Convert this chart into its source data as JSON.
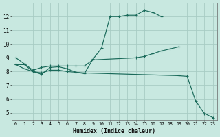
{
  "background_color": "#c8e8e0",
  "grid_color": "#a8ccc4",
  "line_color": "#1a6a5a",
  "xlabel": "Humidex (Indice chaleur)",
  "xlim": [
    -0.5,
    23.5
  ],
  "ylim": [
    4.5,
    13.0
  ],
  "xtick_vals": [
    0,
    1,
    2,
    3,
    4,
    5,
    6,
    7,
    8,
    9,
    10,
    11,
    12,
    13,
    14,
    15,
    16,
    17,
    18,
    19,
    20,
    21,
    22,
    23
  ],
  "ytick_vals": [
    5,
    6,
    7,
    8,
    9,
    10,
    11,
    12
  ],
  "line1_x": [
    0,
    1,
    2,
    3,
    4,
    5,
    6,
    7,
    8,
    9,
    10,
    11,
    12,
    13,
    14,
    15,
    16,
    17
  ],
  "line1_y": [
    8.5,
    8.5,
    8.0,
    7.8,
    8.3,
    8.35,
    8.2,
    7.95,
    7.85,
    8.9,
    9.7,
    12.0,
    12.0,
    12.1,
    12.1,
    12.45,
    12.3,
    12.0
  ],
  "line2_x": [
    0,
    1,
    2,
    3,
    4,
    5,
    6,
    7,
    8,
    9,
    14,
    15,
    16,
    17,
    18,
    19
  ],
  "line2_y": [
    9.0,
    8.55,
    8.1,
    8.3,
    8.4,
    8.4,
    8.4,
    8.4,
    8.4,
    8.85,
    9.0,
    9.1,
    9.3,
    9.5,
    9.65,
    9.8
  ],
  "line3_x": [
    0,
    1,
    2,
    3,
    4,
    5,
    6,
    7,
    8,
    19,
    20,
    21,
    22,
    23
  ],
  "line3_y": [
    8.5,
    8.2,
    8.0,
    7.9,
    8.1,
    8.1,
    8.0,
    7.95,
    7.9,
    7.7,
    7.65,
    5.85,
    4.95,
    4.65
  ]
}
